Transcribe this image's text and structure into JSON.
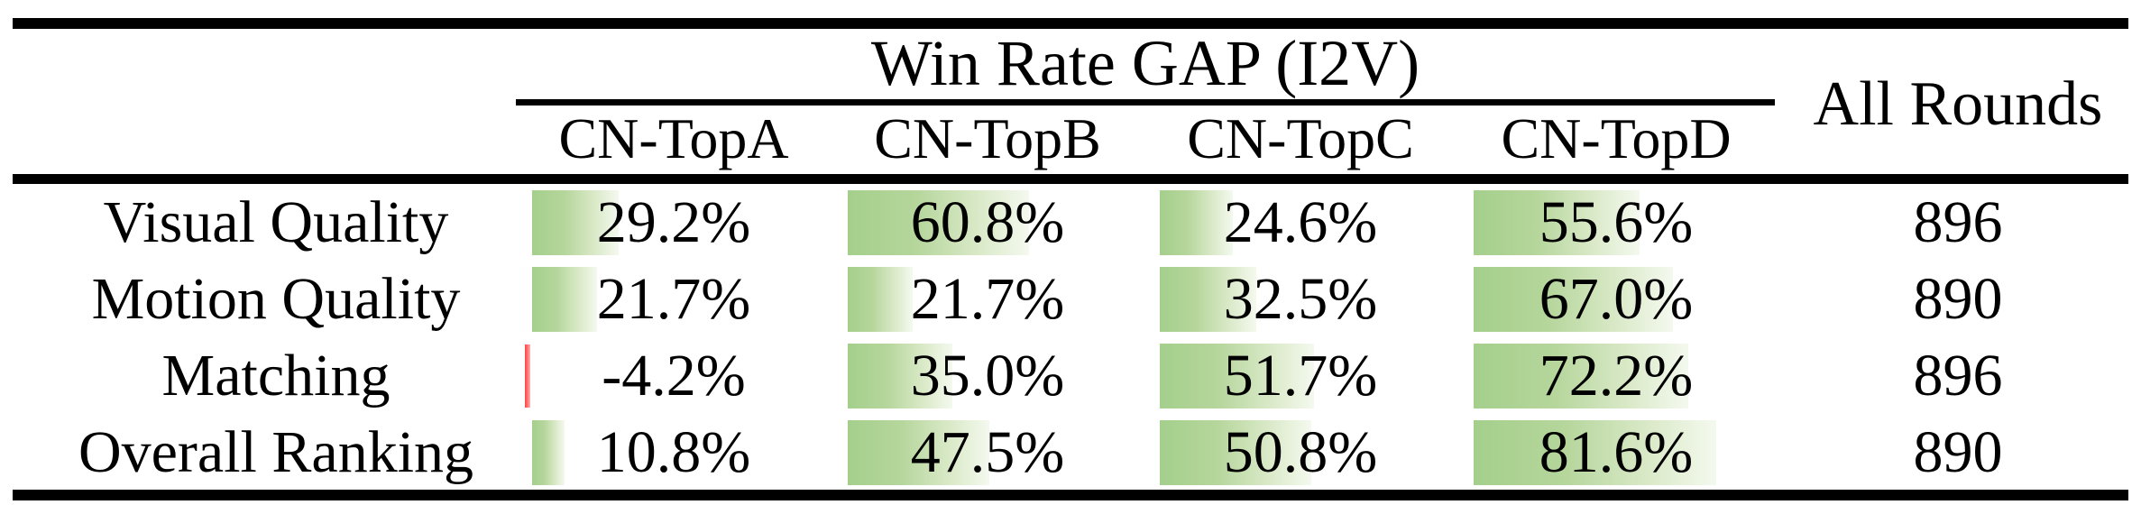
{
  "table": {
    "title": "Win Rate GAP (I2V)",
    "all_rounds_header": "All Rounds",
    "columns": [
      "CN-TopA",
      "CN-TopB",
      "CN-TopC",
      "CN-TopD"
    ],
    "rows": [
      {
        "label": "Visual Quality",
        "cells": [
          {
            "value": 29.2,
            "display": "29.2%"
          },
          {
            "value": 60.8,
            "display": "60.8%"
          },
          {
            "value": 24.6,
            "display": "24.6%"
          },
          {
            "value": 55.6,
            "display": "55.6%"
          }
        ],
        "all_rounds": "896"
      },
      {
        "label": "Motion Quality",
        "cells": [
          {
            "value": 21.7,
            "display": "21.7%"
          },
          {
            "value": 21.7,
            "display": "21.7%"
          },
          {
            "value": 32.5,
            "display": "32.5%"
          },
          {
            "value": 67.0,
            "display": "67.0%"
          }
        ],
        "all_rounds": "890"
      },
      {
        "label": "Matching",
        "cells": [
          {
            "value": -4.2,
            "display": "-4.2%"
          },
          {
            "value": 35.0,
            "display": "35.0%"
          },
          {
            "value": 51.7,
            "display": "51.7%"
          },
          {
            "value": 72.2,
            "display": "72.2%"
          }
        ],
        "all_rounds": "896"
      },
      {
        "label": "Overall Ranking",
        "cells": [
          {
            "value": 10.8,
            "display": "10.8%"
          },
          {
            "value": 47.5,
            "display": "47.5%"
          },
          {
            "value": 50.8,
            "display": "50.8%"
          },
          {
            "value": 81.6,
            "display": "81.6%"
          }
        ],
        "all_rounds": "890"
      }
    ],
    "colors": {
      "positive_bar_green": "#a4cf8b",
      "positive_bar_fade": "#f4f9ef",
      "negative_bar_red": "#ff4444",
      "text": "#000000",
      "rule": "#000000",
      "background": "#ffffff"
    }
  },
  "chart_data": {
    "type": "table",
    "title": "Win Rate GAP (I2V)",
    "categories": [
      "CN-TopA",
      "CN-TopB",
      "CN-TopC",
      "CN-TopD"
    ],
    "series": [
      {
        "name": "Visual Quality",
        "values": [
          29.2,
          60.8,
          24.6,
          55.6
        ],
        "all_rounds": 896
      },
      {
        "name": "Motion Quality",
        "values": [
          21.7,
          21.7,
          32.5,
          67.0
        ],
        "all_rounds": 890
      },
      {
        "name": "Matching",
        "values": [
          -4.2,
          35.0,
          51.7,
          72.2
        ],
        "all_rounds": 896
      },
      {
        "name": "Overall Ranking",
        "values": [
          10.8,
          47.5,
          50.8,
          81.6
        ],
        "all_rounds": 890
      }
    ],
    "extra_column": "All Rounds",
    "bar_style": "in-cell data bars, green gradient for positive, thin red for negative",
    "value_unit": "%"
  }
}
